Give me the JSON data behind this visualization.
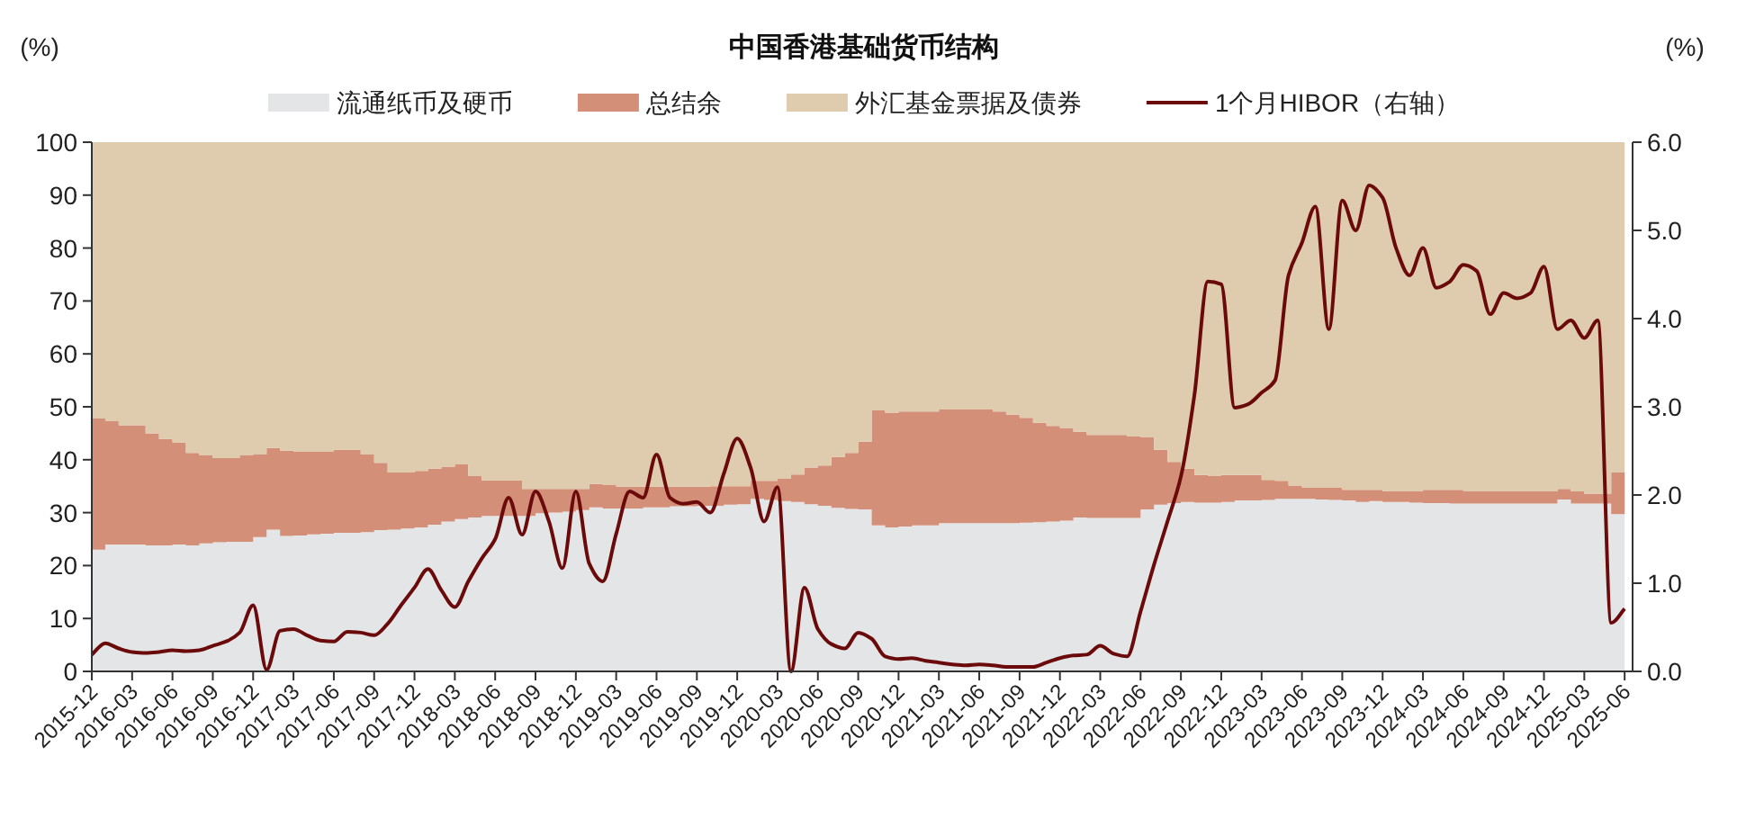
{
  "chart_data": {
    "type": "area",
    "stacked": true,
    "title": "中国香港基础货币结构",
    "ylabel": "(%)",
    "y2label": "(%)",
    "legend": "top",
    "categories": [
      "2015-12",
      null,
      null,
      "2016-03",
      null,
      null,
      "2016-06",
      null,
      null,
      "2016-09",
      null,
      null,
      "2016-12",
      null,
      null,
      "2017-03",
      null,
      null,
      "2017-06",
      null,
      null,
      "2017-09",
      null,
      null,
      "2017-12",
      null,
      null,
      "2018-03",
      null,
      null,
      "2018-06",
      null,
      null,
      "2018-09",
      null,
      null,
      "2018-12",
      null,
      null,
      "2019-03",
      null,
      null,
      "2019-06",
      null,
      null,
      "2019-09",
      null,
      null,
      "2019-12",
      null,
      null,
      "2020-03",
      null,
      null,
      "2020-06",
      null,
      null,
      "2020-09",
      null,
      null,
      "2020-12",
      null,
      null,
      "2021-03",
      null,
      null,
      "2021-06",
      null,
      null,
      "2021-09",
      null,
      null,
      "2021-12",
      null,
      null,
      "2022-03",
      null,
      null,
      "2022-06",
      null,
      null,
      "2022-09",
      null,
      null,
      "2022-12",
      null,
      null,
      "2023-03",
      null,
      null,
      "2023-06",
      null,
      null,
      "2023-09",
      null,
      null,
      "2023-12",
      null,
      null,
      "2024-03",
      null,
      null,
      "2024-06",
      null,
      null,
      "2024-09",
      null,
      null,
      "2024-12",
      null,
      null,
      "2025-03",
      null,
      null,
      "2025-06"
    ],
    "ylim": [
      0,
      100
    ],
    "yticks": [
      0,
      10,
      20,
      30,
      40,
      50,
      60,
      70,
      80,
      90,
      100
    ],
    "y2lim": [
      0,
      6
    ],
    "y2ticks": [
      {
        "value": 0,
        "label": "0.0"
      },
      {
        "value": 1,
        "label": "1.0"
      },
      {
        "value": 2,
        "label": "2.0"
      },
      {
        "value": 3,
        "label": "3.0"
      },
      {
        "value": 4,
        "label": "4.0"
      },
      {
        "value": 5,
        "label": "5.0"
      },
      {
        "value": 6,
        "label": "6.0"
      }
    ],
    "series": [
      {
        "name": "流通纸币及硬币",
        "color": "#e4e5e7",
        "values": [
          23.0,
          24.0,
          24.0,
          24.0,
          23.8,
          23.8,
          24.0,
          23.8,
          24.2,
          24.4,
          24.5,
          24.5,
          25.4,
          26.8,
          25.6,
          25.7,
          25.9,
          26.0,
          26.2,
          26.2,
          26.3,
          26.7,
          26.8,
          27.0,
          27.2,
          27.7,
          28.3,
          28.8,
          29.1,
          29.4,
          29.4,
          29.4,
          29.4,
          29.9,
          30.0,
          30.2,
          30.5,
          31.0,
          30.8,
          30.8,
          30.8,
          31.0,
          31.0,
          31.2,
          31.2,
          31.3,
          31.3,
          31.5,
          31.6,
          32.6,
          32.4,
          32.2,
          32.0,
          31.6,
          31.3,
          30.9,
          30.7,
          30.6,
          27.6,
          27.2,
          27.4,
          27.6,
          27.6,
          28.0,
          28.0,
          28.0,
          28.0,
          28.0,
          28.0,
          28.1,
          28.2,
          28.3,
          28.5,
          29.1,
          29.0,
          29.0,
          29.0,
          29.0,
          30.6,
          31.5,
          31.8,
          32.0,
          31.9,
          31.9,
          32.0,
          32.3,
          32.3,
          32.4,
          32.6,
          32.6,
          32.6,
          32.5,
          32.4,
          32.3,
          32.0,
          32.2,
          32.0,
          32.0,
          31.9,
          31.8,
          31.8,
          31.7,
          31.7,
          31.7,
          31.7,
          31.7,
          31.7,
          31.7,
          31.7,
          32.5,
          31.7,
          31.7,
          31.7,
          29.7,
          29.7
        ]
      },
      {
        "name": "总结余",
        "color": "#d38f78",
        "values": [
          24.8,
          23.3,
          22.5,
          22.5,
          21.2,
          20.1,
          19.3,
          17.5,
          16.6,
          15.9,
          15.8,
          16.3,
          15.6,
          15.4,
          16.1,
          15.9,
          15.7,
          15.6,
          15.7,
          15.7,
          14.7,
          12.7,
          10.8,
          10.6,
          10.7,
          10.6,
          10.4,
          10.3,
          7.8,
          6.7,
          6.7,
          6.7,
          5.1,
          4.6,
          4.5,
          4.3,
          4.0,
          4.4,
          4.4,
          4.1,
          4.1,
          3.9,
          3.9,
          3.7,
          3.7,
          3.6,
          3.7,
          3.5,
          3.4,
          3.4,
          3.6,
          4.3,
          5.2,
          6.9,
          7.6,
          9.6,
          10.6,
          12.8,
          21.7,
          21.7,
          21.7,
          21.5,
          21.5,
          21.5,
          21.5,
          21.5,
          21.5,
          21.1,
          20.5,
          19.8,
          18.8,
          18.1,
          17.5,
          16.2,
          15.7,
          15.7,
          15.7,
          15.4,
          13.6,
          10.4,
          7.8,
          6.3,
          5.2,
          5.0,
          5.1,
          4.8,
          4.8,
          3.8,
          3.4,
          2.5,
          2.2,
          2.3,
          2.4,
          2.0,
          2.3,
          2.1,
          2.0,
          2.0,
          2.1,
          2.5,
          2.5,
          2.6,
          2.3,
          2.3,
          2.3,
          2.3,
          2.3,
          2.3,
          2.3,
          2.0,
          2.3,
          1.9,
          1.9,
          7.9,
          7.9
        ]
      },
      {
        "name": "外汇基金票据及债券",
        "color": "#dfcbad",
        "values": [
          52.2,
          52.7,
          53.5,
          53.5,
          55.0,
          56.1,
          56.7,
          58.7,
          59.2,
          59.7,
          59.7,
          59.2,
          59.0,
          57.8,
          58.3,
          58.4,
          58.4,
          58.4,
          58.1,
          58.1,
          59.0,
          60.6,
          62.4,
          62.4,
          62.1,
          61.7,
          61.3,
          60.9,
          63.1,
          63.9,
          63.9,
          63.9,
          65.5,
          65.5,
          65.5,
          65.5,
          65.5,
          64.6,
          64.8,
          65.1,
          65.1,
          65.1,
          65.1,
          65.1,
          65.1,
          65.1,
          65.0,
          65.0,
          65.0,
          64.0,
          64.0,
          63.5,
          62.8,
          61.5,
          61.1,
          59.5,
          58.7,
          56.6,
          50.7,
          51.1,
          50.9,
          50.9,
          50.9,
          50.5,
          50.5,
          50.5,
          50.5,
          50.9,
          51.5,
          52.1,
          53.0,
          53.6,
          54.0,
          54.7,
          55.3,
          55.3,
          55.3,
          55.6,
          55.8,
          58.1,
          60.4,
          61.7,
          62.9,
          63.1,
          62.9,
          62.9,
          62.9,
          63.8,
          64.0,
          64.9,
          65.2,
          65.2,
          65.2,
          65.7,
          65.7,
          65.7,
          66.0,
          66.0,
          66.0,
          65.7,
          65.7,
          65.7,
          66.0,
          66.0,
          66.0,
          66.0,
          66.0,
          66.0,
          66.0,
          65.5,
          66.0,
          66.4,
          66.4,
          62.4,
          62.4
        ]
      },
      {
        "name": "1个月HIBOR（右轴）",
        "type": "line",
        "axis": "y2",
        "color": "#6b0a0a",
        "values": [
          0.19,
          0.32,
          0.26,
          0.22,
          0.21,
          0.22,
          0.24,
          0.23,
          0.24,
          0.29,
          0.34,
          0.44,
          0.75,
          0.02,
          0.46,
          0.48,
          0.41,
          0.35,
          0.34,
          0.45,
          0.44,
          0.41,
          0.54,
          0.75,
          0.95,
          1.16,
          0.92,
          0.73,
          1.02,
          1.28,
          1.5,
          1.97,
          1.55,
          2.04,
          1.7,
          1.17,
          2.04,
          1.22,
          1.02,
          1.56,
          2.04,
          1.97,
          2.46,
          1.97,
          1.9,
          1.92,
          1.8,
          2.24,
          2.64,
          2.31,
          1.7,
          2.09,
          0.0,
          0.95,
          0.48,
          0.31,
          0.26,
          0.44,
          0.37,
          0.17,
          0.14,
          0.15,
          0.12,
          0.1,
          0.08,
          0.07,
          0.08,
          0.07,
          0.05,
          0.05,
          0.05,
          0.1,
          0.15,
          0.18,
          0.19,
          0.29,
          0.2,
          0.17,
          0.68,
          1.21,
          1.7,
          2.21,
          3.13,
          4.42,
          4.39,
          2.99,
          3.03,
          3.16,
          3.3,
          4.49,
          4.86,
          5.27,
          3.88,
          5.34,
          5.0,
          5.51,
          5.37,
          4.8,
          4.49,
          4.8,
          4.35,
          4.42,
          4.61,
          4.54,
          4.05,
          4.29,
          4.23,
          4.29,
          4.59,
          3.88,
          3.98,
          3.78,
          3.98,
          0.55,
          0.71
        ]
      }
    ]
  }
}
